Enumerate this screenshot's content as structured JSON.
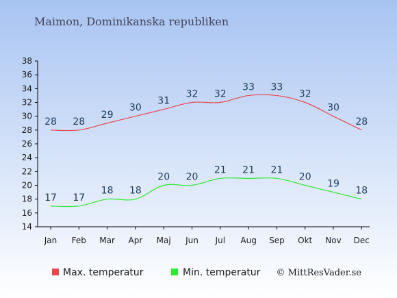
{
  "title": "Maimon, Dominikanska republiken",
  "copyright": "© MittResVader.se",
  "colors": {
    "max": "#e8474b",
    "min": "#2ee82e",
    "label": "#1a3a5c",
    "bg_top": "#a8c4f2",
    "bg_bottom": "#ffffff"
  },
  "chart_data": {
    "type": "line",
    "categories": [
      "Jan",
      "Feb",
      "Mar",
      "Apr",
      "Maj",
      "Jun",
      "Jul",
      "Aug",
      "Sep",
      "Okt",
      "Nov",
      "Dec"
    ],
    "series": [
      {
        "name": "Max. temperatur",
        "values": [
          28,
          28,
          29,
          30,
          31,
          32,
          32,
          33,
          33,
          32,
          30,
          28
        ]
      },
      {
        "name": "Min. temperatur",
        "values": [
          17,
          17,
          18,
          18,
          20,
          20,
          21,
          21,
          21,
          20,
          19,
          18
        ]
      }
    ],
    "yticks": [
      14,
      16,
      18,
      20,
      22,
      24,
      26,
      28,
      30,
      32,
      34,
      36,
      38
    ],
    "ylim": [
      14,
      38
    ],
    "legend": "bottom"
  }
}
